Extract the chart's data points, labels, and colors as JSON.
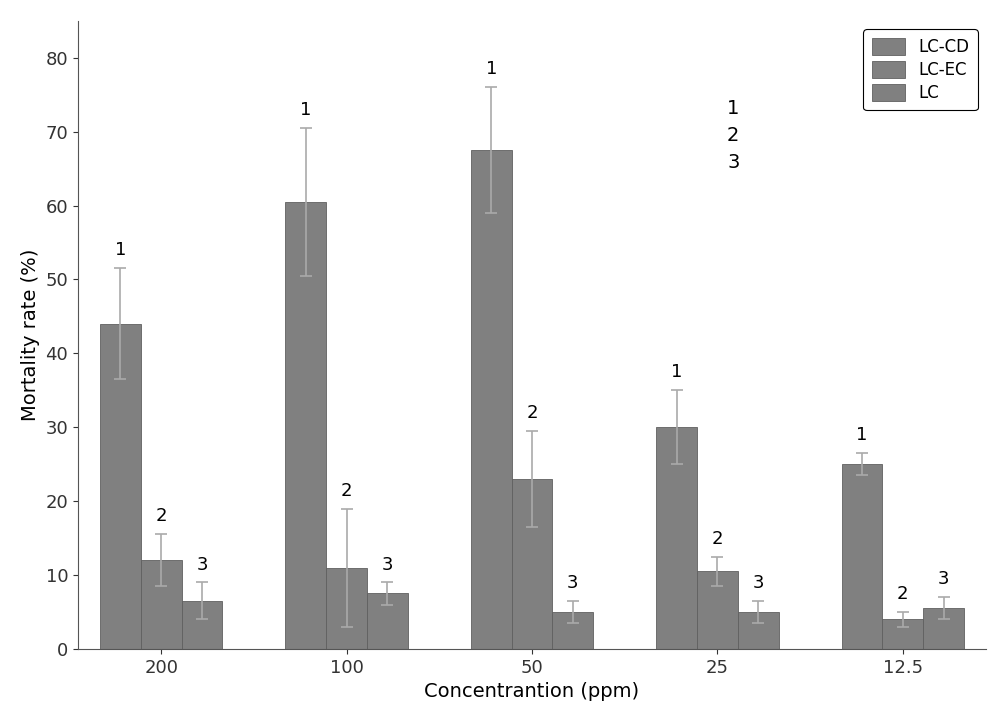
{
  "concentrations": [
    "200",
    "100",
    "50",
    "25",
    "12.5"
  ],
  "series": {
    "LC-CD": {
      "values": [
        44.0,
        60.5,
        67.5,
        30.0,
        25.0
      ],
      "errors": [
        7.5,
        10.0,
        8.5,
        5.0,
        1.5
      ],
      "color": "#808080",
      "label": "1"
    },
    "LC-EC": {
      "values": [
        12.0,
        11.0,
        23.0,
        10.5,
        4.0
      ],
      "errors": [
        3.5,
        8.0,
        6.5,
        2.0,
        1.0
      ],
      "color": "#808080",
      "label": "2"
    },
    "LC": {
      "values": [
        6.5,
        7.5,
        5.0,
        5.0,
        5.5
      ],
      "errors": [
        2.5,
        1.5,
        1.5,
        1.5,
        1.5
      ],
      "color": "#808080",
      "label": "3"
    }
  },
  "xlabel": "Concentrantion (ppm)",
  "ylabel": "Mortality rate (%)",
  "ylim": [
    0,
    85
  ],
  "yticks": [
    0,
    10,
    20,
    30,
    40,
    50,
    60,
    70,
    80
  ],
  "bar_width": 0.22,
  "background_color": "#ffffff",
  "legend_labels": [
    "LC-CD",
    "LC-EC",
    "LC"
  ],
  "legend_numbers": [
    "1",
    "2",
    "3"
  ],
  "capsize": 4,
  "edgecolor": "#606060",
  "error_color": "#aaaaaa"
}
